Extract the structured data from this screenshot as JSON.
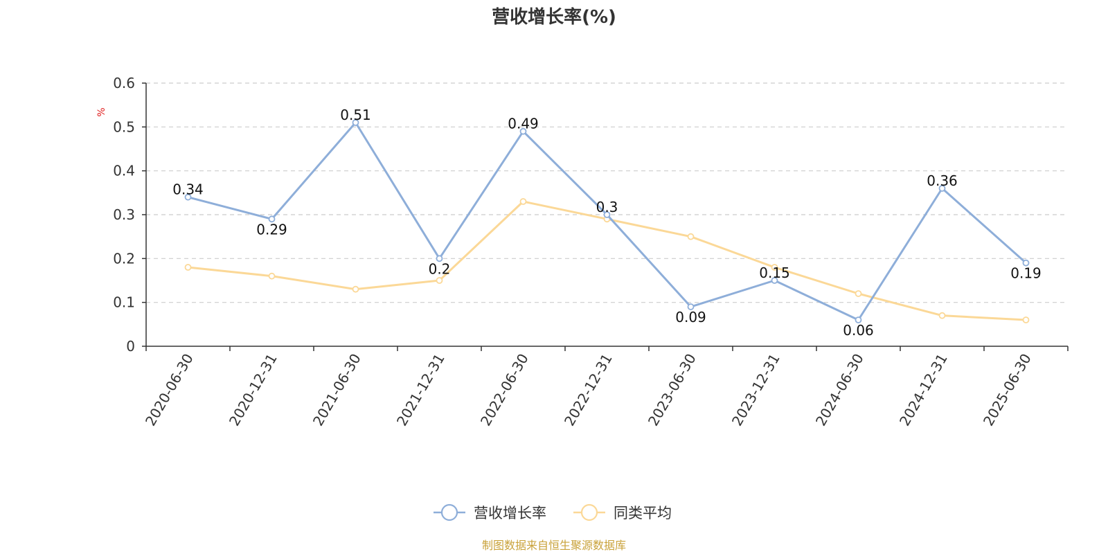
{
  "chart_data": {
    "type": "line",
    "title": "营收增长率(%)",
    "ylabel": "%",
    "categories": [
      "2020-06-30",
      "2020-12-31",
      "2021-06-30",
      "2021-12-31",
      "2022-06-30",
      "2022-12-31",
      "2023-06-30",
      "2023-12-31",
      "2024-06-30",
      "2024-12-31",
      "2025-06-30"
    ],
    "ylim": [
      0,
      0.6
    ],
    "yticks": [
      "0",
      "0.1",
      "0.2",
      "0.3",
      "0.4",
      "0.5",
      "0.6"
    ],
    "grid": true,
    "legend_position": "bottom",
    "series": [
      {
        "name": "营收增长率",
        "color": "#8eaed9",
        "show_labels": true,
        "values": [
          0.34,
          0.29,
          0.51,
          0.2,
          0.49,
          0.3,
          0.09,
          0.15,
          0.06,
          0.36,
          0.19
        ]
      },
      {
        "name": "同类平均",
        "color": "#fbd897",
        "show_labels": false,
        "values": [
          0.18,
          0.16,
          0.13,
          0.15,
          0.33,
          0.29,
          0.25,
          0.18,
          0.12,
          0.07,
          0.06
        ]
      }
    ]
  },
  "source_note": "制图数据来自恒生聚源数据库",
  "colors": {
    "unit": "#e02020",
    "source": "#c9a23a",
    "axis": "#333333",
    "grid": "#cccccc"
  }
}
